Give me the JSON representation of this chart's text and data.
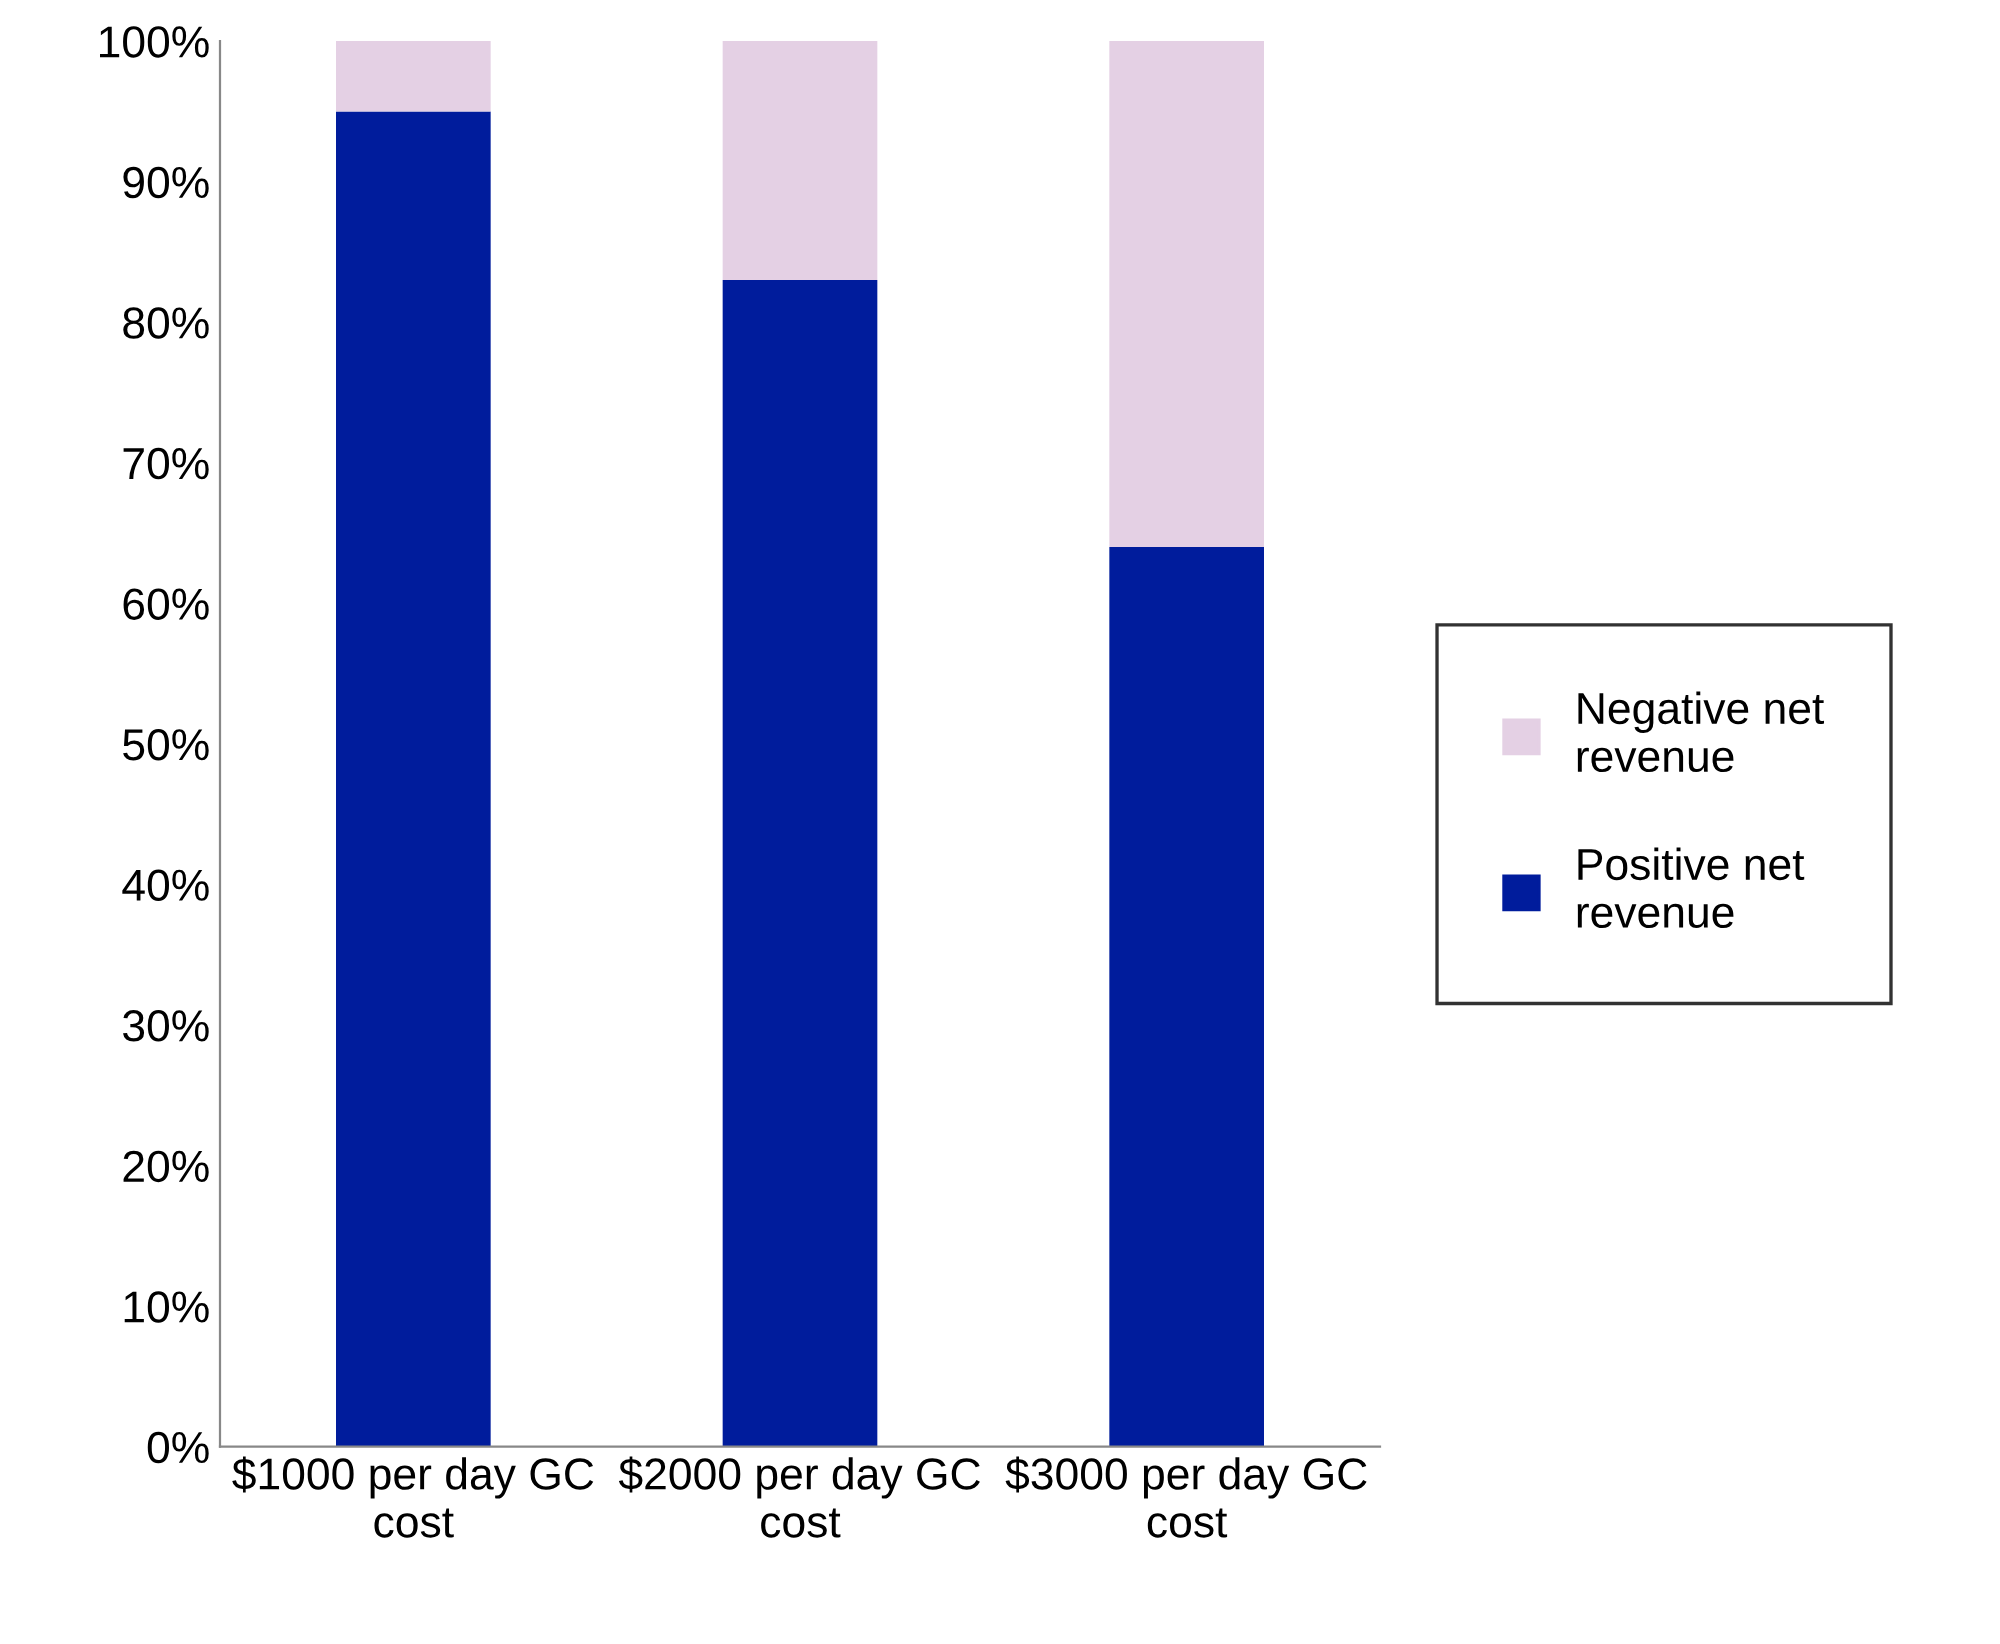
{
  "chart_data": {
    "type": "bar",
    "stacked": true,
    "categories": [
      "$1000 per day GC cost",
      "$2000 per day GC cost",
      "$3000 per day GC cost"
    ],
    "series": [
      {
        "name": "Positive net revenue",
        "color": "#001c9c",
        "values": [
          95,
          83,
          64
        ]
      },
      {
        "name": "Negative net revenue",
        "color": "#e4d0e4",
        "values": [
          5,
          17,
          36
        ]
      }
    ],
    "ylim": [
      0,
      100
    ],
    "yticks": [
      {
        "value": 0,
        "label": "0%"
      },
      {
        "value": 10,
        "label": "10%"
      },
      {
        "value": 20,
        "label": "20%"
      },
      {
        "value": 30,
        "label": "30%"
      },
      {
        "value": 40,
        "label": "40%"
      },
      {
        "value": 50,
        "label": "50%"
      },
      {
        "value": 60,
        "label": "60%"
      },
      {
        "value": 70,
        "label": "70%"
      },
      {
        "value": 80,
        "label": "80%"
      },
      {
        "value": 90,
        "label": "90%"
      },
      {
        "value": 100,
        "label": "100%"
      }
    ],
    "grid": false,
    "legend": "right"
  }
}
